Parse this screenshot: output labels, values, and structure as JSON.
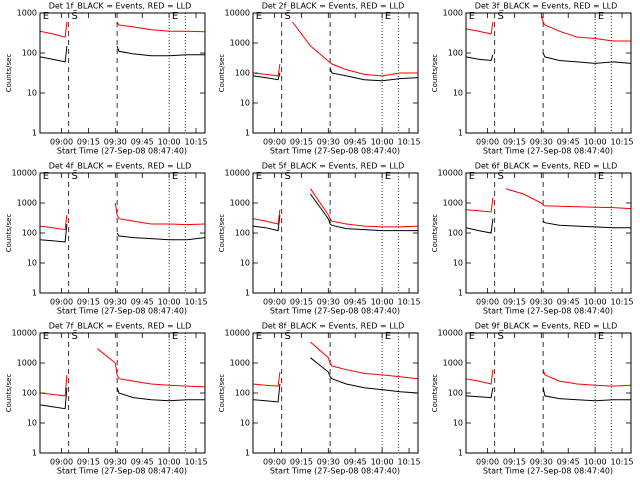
{
  "chart_data": [
    {
      "type": "line",
      "title": "Det 1f_BLACK = Events, RED = LLD",
      "x_label": "Start Time (27-Sep-08 08:47:40)",
      "y_label": "Counts/sec",
      "log_y": true,
      "x": [
        "08:48",
        "08:55",
        "09:02",
        "09:03",
        "09:05",
        "09:06",
        "09:10",
        "09:20",
        "09:30",
        "09:31",
        "09:32",
        "09:40",
        "09:50",
        "10:00",
        "10:10",
        "10:20"
      ],
      "series": [
        {
          "color": "#000000",
          "values": [
            80,
            70,
            60,
            150,
            null,
            null,
            null,
            null,
            null,
            150,
            110,
            95,
            85,
            85,
            90,
            90
          ]
        },
        {
          "color": "#ff0000",
          "values": [
            350,
            300,
            250,
            600,
            null,
            null,
            null,
            null,
            null,
            600,
            500,
            450,
            380,
            350,
            350,
            340
          ]
        }
      ],
      "xlim": [
        "08:48",
        "10:20"
      ],
      "xticks": [
        "09:00",
        "09:15",
        "09:30",
        "09:45",
        "10:00",
        "10:15"
      ],
      "ylim": [
        1,
        1000
      ],
      "yticks": [
        1,
        10,
        100,
        1000
      ],
      "markers": [
        {
          "x": "09:04",
          "style": "dashed"
        },
        {
          "x": "09:31",
          "style": "dashed"
        },
        {
          "x": "10:00",
          "style": "dotted"
        },
        {
          "x": "10:09",
          "style": "dotted"
        }
      ],
      "annotations": [
        {
          "x": "08:49",
          "text": "E"
        },
        {
          "x": "09:05",
          "text": "S"
        },
        {
          "x": "10:01",
          "text": "E"
        }
      ]
    },
    {
      "type": "line",
      "title": "Det 2f_BLACK = Events, RED = LLD",
      "x_label": "Start Time (27-Sep-08 08:47:40)",
      "y_label": "Counts/sec",
      "log_y": true,
      "x": [
        "08:48",
        "08:55",
        "09:02",
        "09:03",
        "09:05",
        "09:06",
        "09:10",
        "09:20",
        "09:30",
        "09:31",
        "09:32",
        "09:40",
        "09:50",
        "10:00",
        "10:10",
        "10:20"
      ],
      "series": [
        {
          "color": "#000000",
          "values": [
            80,
            70,
            60,
            100,
            null,
            null,
            null,
            null,
            null,
            140,
            100,
            80,
            60,
            55,
            65,
            70
          ]
        },
        {
          "color": "#ff0000",
          "values": [
            100,
            90,
            80,
            200,
            null,
            null,
            5000,
            800,
            250,
            220,
            200,
            130,
            90,
            80,
            100,
            100
          ]
        }
      ],
      "xlim": [
        "08:48",
        "10:20"
      ],
      "xticks": [
        "09:00",
        "09:15",
        "09:30",
        "09:45",
        "10:00",
        "10:15"
      ],
      "ylim": [
        1,
        10000
      ],
      "yticks": [
        1,
        10,
        100,
        1000,
        10000
      ],
      "markers": [
        {
          "x": "09:04",
          "style": "dashed"
        },
        {
          "x": "09:31",
          "style": "dashed"
        },
        {
          "x": "10:00",
          "style": "dotted"
        },
        {
          "x": "10:09",
          "style": "dotted"
        }
      ],
      "annotations": [
        {
          "x": "08:49",
          "text": "E"
        },
        {
          "x": "09:05",
          "text": "S"
        },
        {
          "x": "10:01",
          "text": "E"
        }
      ]
    },
    {
      "type": "line",
      "title": "Det 3f_BLACK = Events, RED = LLD",
      "x_label": "Start Time (27-Sep-08 08:47:40)",
      "y_label": "Counts/sec",
      "log_y": true,
      "x": [
        "08:48",
        "08:55",
        "09:02",
        "09:03",
        "09:05",
        "09:06",
        "09:10",
        "09:20",
        "09:30",
        "09:31",
        "09:32",
        "09:40",
        "09:50",
        "10:00",
        "10:10",
        "10:20"
      ],
      "series": [
        {
          "color": "#000000",
          "values": [
            80,
            70,
            65,
            90,
            null,
            null,
            null,
            null,
            null,
            100,
            80,
            65,
            60,
            55,
            60,
            55
          ]
        },
        {
          "color": "#ff0000",
          "values": [
            400,
            350,
            300,
            600,
            null,
            null,
            null,
            null,
            900,
            600,
            500,
            350,
            250,
            230,
            200,
            200
          ]
        }
      ],
      "xlim": [
        "08:48",
        "10:20"
      ],
      "xticks": [
        "09:00",
        "09:15",
        "09:30",
        "09:45",
        "10:00",
        "10:15"
      ],
      "ylim": [
        1,
        1000
      ],
      "yticks": [
        1,
        10,
        100,
        1000
      ],
      "markers": [
        {
          "x": "09:04",
          "style": "dashed"
        },
        {
          "x": "09:31",
          "style": "dashed"
        },
        {
          "x": "10:00",
          "style": "dotted"
        },
        {
          "x": "10:09",
          "style": "dotted"
        }
      ],
      "annotations": [
        {
          "x": "08:49",
          "text": "E"
        },
        {
          "x": "09:05",
          "text": "S"
        },
        {
          "x": "10:01",
          "text": "E"
        }
      ]
    },
    {
      "type": "line",
      "title": "Det 4f_BLACK = Events, RED = LLD",
      "x_label": "Start Time (27-Sep-08 08:47:40)",
      "y_label": "Counts/sec",
      "log_y": true,
      "x": [
        "08:48",
        "08:55",
        "09:02",
        "09:03",
        "09:05",
        "09:06",
        "09:10",
        "09:20",
        "09:30",
        "09:31",
        "09:32",
        "09:40",
        "09:50",
        "10:00",
        "10:10",
        "10:20"
      ],
      "series": [
        {
          "color": "#000000",
          "values": [
            60,
            55,
            50,
            200,
            null,
            null,
            null,
            null,
            null,
            100,
            80,
            70,
            65,
            60,
            60,
            70
          ]
        },
        {
          "color": "#ff0000",
          "values": [
            170,
            150,
            130,
            400,
            null,
            null,
            null,
            null,
            1000,
            400,
            300,
            250,
            200,
            200,
            190,
            200
          ]
        }
      ],
      "xlim": [
        "08:48",
        "10:20"
      ],
      "xticks": [
        "09:00",
        "09:15",
        "09:30",
        "09:45",
        "10:00",
        "10:15"
      ],
      "ylim": [
        1,
        10000
      ],
      "yticks": [
        1,
        10,
        100,
        1000,
        10000
      ],
      "markers": [
        {
          "x": "09:04",
          "style": "dashed"
        },
        {
          "x": "09:31",
          "style": "dashed"
        },
        {
          "x": "10:00",
          "style": "dotted"
        },
        {
          "x": "10:09",
          "style": "dotted"
        }
      ],
      "annotations": [
        {
          "x": "08:49",
          "text": "E"
        },
        {
          "x": "09:05",
          "text": "S"
        },
        {
          "x": "10:01",
          "text": "E"
        }
      ]
    },
    {
      "type": "line",
      "title": "Det 5f_BLACK = Events, RED = LLD",
      "x_label": "Start Time (27-Sep-08 08:47:40)",
      "y_label": "Counts/sec",
      "log_y": true,
      "x": [
        "08:48",
        "08:55",
        "09:02",
        "09:03",
        "09:05",
        "09:06",
        "09:10",
        "09:20",
        "09:30",
        "09:31",
        "09:32",
        "09:40",
        "09:50",
        "10:00",
        "10:10",
        "10:20"
      ],
      "series": [
        {
          "color": "#000000",
          "values": [
            170,
            150,
            120,
            400,
            null,
            null,
            null,
            2000,
            300,
            200,
            180,
            140,
            130,
            120,
            120,
            120
          ]
        },
        {
          "color": "#ff0000",
          "values": [
            300,
            250,
            200,
            600,
            null,
            null,
            null,
            3000,
            400,
            300,
            250,
            200,
            170,
            160,
            160,
            170
          ]
        }
      ],
      "xlim": [
        "08:48",
        "10:20"
      ],
      "xticks": [
        "09:00",
        "09:15",
        "09:30",
        "09:45",
        "10:00",
        "10:15"
      ],
      "ylim": [
        1,
        10000
      ],
      "yticks": [
        1,
        10,
        100,
        1000,
        10000
      ],
      "markers": [
        {
          "x": "09:04",
          "style": "dashed"
        },
        {
          "x": "09:31",
          "style": "dashed"
        },
        {
          "x": "10:00",
          "style": "dotted"
        },
        {
          "x": "10:09",
          "style": "dotted"
        }
      ],
      "annotations": [
        {
          "x": "08:49",
          "text": "E"
        },
        {
          "x": "09:05",
          "text": "S"
        },
        {
          "x": "10:01",
          "text": "E"
        }
      ]
    },
    {
      "type": "line",
      "title": "Det 6f_BLACK = Events, RED = LLD",
      "x_label": "Start Time (27-Sep-08 08:47:40)",
      "y_label": "Counts/sec",
      "log_y": true,
      "x": [
        "08:48",
        "08:55",
        "09:02",
        "09:03",
        "09:05",
        "09:06",
        "09:10",
        "09:20",
        "09:30",
        "09:31",
        "09:32",
        "09:40",
        "09:50",
        "10:00",
        "10:10",
        "10:20"
      ],
      "series": [
        {
          "color": "#000000",
          "values": [
            150,
            120,
            100,
            300,
            null,
            null,
            null,
            null,
            null,
            250,
            220,
            180,
            170,
            160,
            150,
            150
          ]
        },
        {
          "color": "#ff0000",
          "values": [
            600,
            550,
            500,
            1500,
            null,
            null,
            3000,
            2000,
            1000,
            850,
            800,
            780,
            750,
            720,
            700,
            650
          ]
        }
      ],
      "xlim": [
        "08:48",
        "10:20"
      ],
      "xticks": [
        "09:00",
        "09:15",
        "09:30",
        "09:45",
        "10:00",
        "10:15"
      ],
      "ylim": [
        1,
        10000
      ],
      "yticks": [
        1,
        10,
        100,
        1000,
        10000
      ],
      "markers": [
        {
          "x": "09:04",
          "style": "dashed"
        },
        {
          "x": "09:31",
          "style": "dashed"
        },
        {
          "x": "10:00",
          "style": "dotted"
        },
        {
          "x": "10:09",
          "style": "dotted"
        }
      ],
      "annotations": [
        {
          "x": "08:49",
          "text": "E"
        },
        {
          "x": "09:05",
          "text": "S"
        },
        {
          "x": "10:01",
          "text": "E"
        }
      ]
    },
    {
      "type": "line",
      "title": "Det 7f_BLACK = Events, RED = LLD",
      "x_label": "Start Time (27-Sep-08 08:47:40)",
      "y_label": "Counts/sec",
      "log_y": true,
      "x": [
        "08:48",
        "08:55",
        "09:02",
        "09:03",
        "09:05",
        "09:06",
        "09:10",
        "09:20",
        "09:30",
        "09:31",
        "09:32",
        "09:40",
        "09:50",
        "10:00",
        "10:10",
        "10:20"
      ],
      "series": [
        {
          "color": "#000000",
          "values": [
            40,
            35,
            30,
            150,
            null,
            null,
            null,
            null,
            null,
            150,
            100,
            70,
            60,
            55,
            60,
            60
          ]
        },
        {
          "color": "#ff0000",
          "values": [
            100,
            90,
            80,
            400,
            null,
            null,
            null,
            3000,
            1000,
            400,
            300,
            250,
            200,
            180,
            170,
            160
          ]
        }
      ],
      "xlim": [
        "08:48",
        "10:20"
      ],
      "xticks": [
        "09:00",
        "09:15",
        "09:30",
        "09:45",
        "10:00",
        "10:15"
      ],
      "ylim": [
        1,
        10000
      ],
      "yticks": [
        1,
        10,
        100,
        1000,
        10000
      ],
      "markers": [
        {
          "x": "09:04",
          "style": "dashed"
        },
        {
          "x": "09:31",
          "style": "dashed"
        },
        {
          "x": "10:00",
          "style": "dotted"
        },
        {
          "x": "10:09",
          "style": "dotted"
        }
      ],
      "annotations": [
        {
          "x": "08:49",
          "text": "E"
        },
        {
          "x": "09:05",
          "text": "S"
        },
        {
          "x": "10:01",
          "text": "E"
        }
      ]
    },
    {
      "type": "line",
      "title": "Det 8f_BLACK = Events, RED = LLD",
      "x_label": "Start Time (27-Sep-08 08:47:40)",
      "y_label": "Counts/sec",
      "log_y": true,
      "x": [
        "08:48",
        "08:55",
        "09:02",
        "09:03",
        "09:05",
        "09:06",
        "09:10",
        "09:20",
        "09:30",
        "09:31",
        "09:32",
        "09:40",
        "09:50",
        "10:00",
        "10:10",
        "10:20"
      ],
      "series": [
        {
          "color": "#000000",
          "values": [
            60,
            55,
            50,
            200,
            null,
            null,
            null,
            1500,
            500,
            350,
            300,
            200,
            150,
            130,
            110,
            100
          ]
        },
        {
          "color": "#ff0000",
          "values": [
            200,
            180,
            170,
            500,
            null,
            null,
            null,
            5000,
            1500,
            1000,
            800,
            600,
            450,
            400,
            350,
            300
          ]
        }
      ],
      "xlim": [
        "08:48",
        "10:20"
      ],
      "xticks": [
        "09:00",
        "09:15",
        "09:30",
        "09:45",
        "10:00",
        "10:15"
      ],
      "ylim": [
        1,
        10000
      ],
      "yticks": [
        1,
        10,
        100,
        1000,
        10000
      ],
      "markers": [
        {
          "x": "09:04",
          "style": "dashed"
        },
        {
          "x": "09:31",
          "style": "dashed"
        },
        {
          "x": "10:00",
          "style": "dotted"
        },
        {
          "x": "10:09",
          "style": "dotted"
        }
      ],
      "annotations": [
        {
          "x": "08:49",
          "text": "E"
        },
        {
          "x": "09:05",
          "text": "S"
        },
        {
          "x": "10:01",
          "text": "E"
        }
      ]
    },
    {
      "type": "line",
      "title": "Det 9f_BLACK = Events, RED = LLD",
      "x_label": "Start Time (27-Sep-08 08:47:40)",
      "y_label": "Counts/sec",
      "log_y": true,
      "x": [
        "08:48",
        "08:55",
        "09:02",
        "09:03",
        "09:05",
        "09:06",
        "09:10",
        "09:20",
        "09:30",
        "09:31",
        "09:32",
        "09:40",
        "09:50",
        "10:00",
        "10:10",
        "10:20"
      ],
      "series": [
        {
          "color": "#000000",
          "values": [
            80,
            75,
            70,
            150,
            null,
            null,
            null,
            null,
            null,
            150,
            80,
            65,
            60,
            55,
            60,
            60
          ]
        },
        {
          "color": "#ff0000",
          "values": [
            300,
            250,
            200,
            600,
            null,
            null,
            null,
            null,
            null,
            600,
            400,
            250,
            200,
            180,
            170,
            180
          ]
        }
      ],
      "xlim": [
        "08:48",
        "10:20"
      ],
      "xticks": [
        "09:00",
        "09:15",
        "09:30",
        "09:45",
        "10:00",
        "10:15"
      ],
      "ylim": [
        1,
        10000
      ],
      "yticks": [
        1,
        10,
        100,
        1000,
        10000
      ],
      "markers": [
        {
          "x": "09:04",
          "style": "dashed"
        },
        {
          "x": "09:31",
          "style": "dashed"
        },
        {
          "x": "10:00",
          "style": "dotted"
        },
        {
          "x": "10:09",
          "style": "dotted"
        }
      ],
      "annotations": [
        {
          "x": "08:49",
          "text": "E"
        },
        {
          "x": "09:05",
          "text": "S"
        },
        {
          "x": "10:01",
          "text": "E"
        }
      ]
    }
  ]
}
